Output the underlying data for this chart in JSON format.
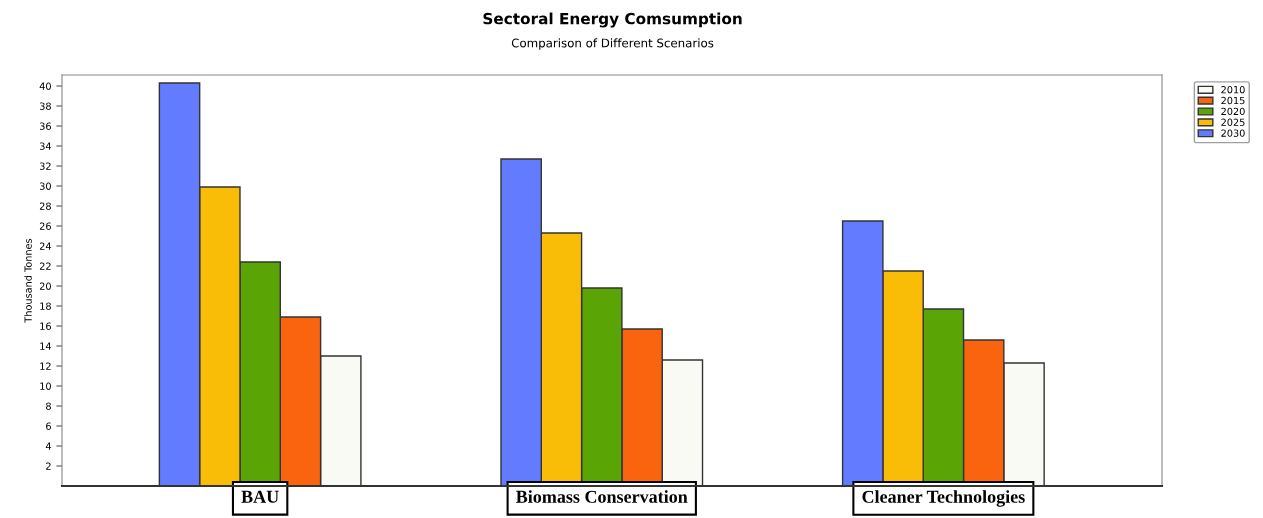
{
  "chart_data": {
    "type": "bar",
    "title": "Sectoral Energy Comsumption",
    "subtitle": "Comparison of Different Scenarios",
    "ylabel": "Thousand Tonnes",
    "categories": [
      "BAU",
      "Biomass Conservation",
      "Cleaner Technologies"
    ],
    "series": [
      {
        "name": "2010",
        "color": "#fafaf5",
        "values": [
          13.0,
          12.6,
          12.3
        ]
      },
      {
        "name": "2015",
        "color": "#fb640f",
        "values": [
          16.9,
          15.7,
          14.6
        ]
      },
      {
        "name": "2020",
        "color": "#5aa505",
        "values": [
          22.4,
          19.8,
          17.7
        ]
      },
      {
        "name": "2025",
        "color": "#f9bd08",
        "values": [
          29.9,
          25.3,
          21.5
        ]
      },
      {
        "name": "2030",
        "color": "#637bfe",
        "values": [
          40.3,
          32.7,
          26.5
        ]
      }
    ],
    "ylim": [
      0,
      41.1
    ],
    "yticks": [
      2,
      4,
      6,
      8,
      10,
      12,
      14,
      16,
      18,
      20,
      22,
      24,
      26,
      28,
      30,
      32,
      34,
      36,
      38,
      40
    ],
    "grid": false,
    "legend": "top right"
  }
}
